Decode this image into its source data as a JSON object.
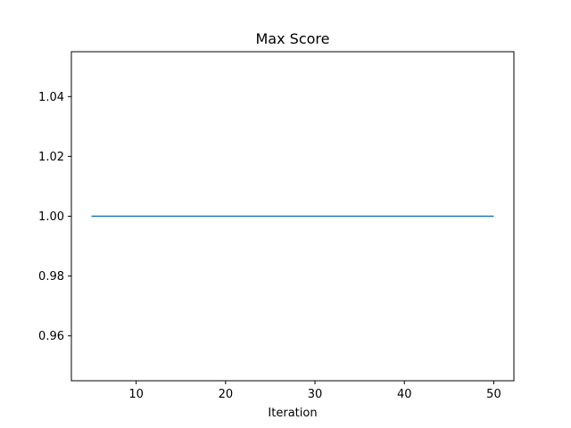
{
  "chart_data": {
    "type": "line",
    "title": "Max Score",
    "xlabel": "Iteration",
    "ylabel": "",
    "xlim": [
      2.75,
      52.25
    ],
    "ylim": [
      0.945,
      1.055
    ],
    "xticks": [
      10,
      20,
      30,
      40,
      50
    ],
    "xtick_labels": [
      "10",
      "20",
      "30",
      "40",
      "50"
    ],
    "yticks": [
      0.96,
      0.98,
      1.0,
      1.02,
      1.04
    ],
    "ytick_labels": [
      "0.96",
      "0.98",
      "1.00",
      "1.02",
      "1.04"
    ],
    "grid": false,
    "series": [
      {
        "color": "#1f77b4",
        "x": [
          5,
          10,
          15,
          20,
          25,
          30,
          35,
          40,
          45,
          50
        ],
        "y": [
          1.0,
          1.0,
          1.0,
          1.0,
          1.0,
          1.0,
          1.0,
          1.0,
          1.0,
          1.0
        ]
      }
    ]
  }
}
